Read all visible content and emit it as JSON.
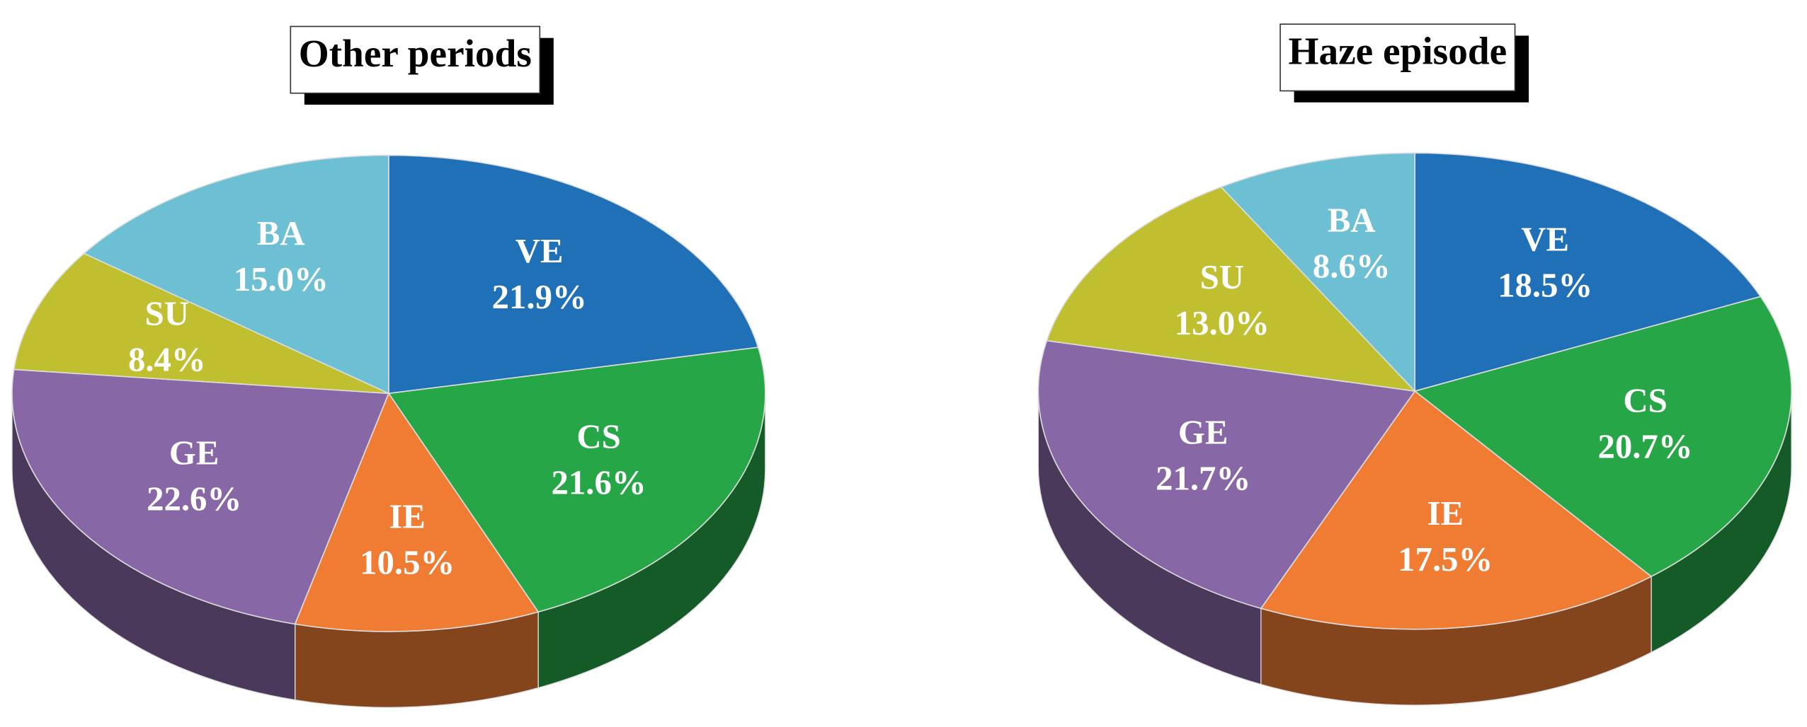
{
  "chart_data": [
    {
      "type": "pie",
      "title": "Other periods",
      "categories": [
        "VE",
        "CS",
        "IE",
        "GE",
        "SU",
        "BA"
      ],
      "values": [
        21.9,
        21.6,
        10.5,
        22.6,
        8.4,
        15.0
      ],
      "value_labels": [
        "21.9%",
        "21.6%",
        "10.5%",
        "22.6%",
        "8.4%",
        "15.0%"
      ],
      "colors": [
        "#1f70b6",
        "#26a646",
        "#f07b33",
        "#8767a6",
        "#bfbf30",
        "#6dc0d3"
      ]
    },
    {
      "type": "pie",
      "title": "Haze episode",
      "categories": [
        "VE",
        "CS",
        "IE",
        "GE",
        "SU",
        "BA"
      ],
      "values": [
        18.5,
        20.7,
        17.5,
        21.7,
        13.0,
        8.6
      ],
      "value_labels": [
        "18.5%",
        "20.7%",
        "17.5%",
        "21.7%",
        "13.0%",
        "8.6%"
      ],
      "colors": [
        "#1f70b6",
        "#26a646",
        "#f07b33",
        "#8767a6",
        "#bfbf30",
        "#6dc0d3"
      ]
    }
  ]
}
